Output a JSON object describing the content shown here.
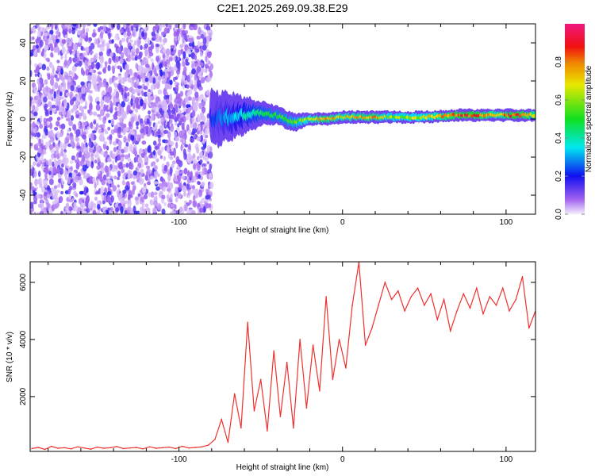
{
  "title": "C2E1.2025.269.09.38.E29",
  "chart_data": [
    {
      "type": "heatmap",
      "xlabel": "Height of straight line (km)",
      "ylabel": "Frequency (Hz)",
      "xlim": [
        -191,
        118
      ],
      "ylim": [
        -50,
        50
      ],
      "xticks": [
        {
          "v": -100,
          "label": "-100"
        },
        {
          "v": 0,
          "label": "0"
        },
        {
          "v": 100,
          "label": "100"
        }
      ],
      "yticks": [
        {
          "v": -40,
          "label": "-40"
        },
        {
          "v": -20,
          "label": "-20"
        },
        {
          "v": 0,
          "label": "0"
        },
        {
          "v": 20,
          "label": "20"
        },
        {
          "v": 40,
          "label": "40"
        }
      ],
      "colorbar": {
        "label": "Normalized spectral amplitude",
        "range": [
          0,
          1
        ],
        "ticks": [
          {
            "v": 0,
            "label": "0.0"
          },
          {
            "v": 0.2,
            "label": "0.2"
          },
          {
            "v": 0.4,
            "label": "0.4"
          },
          {
            "v": 0.6,
            "label": "0.6"
          },
          {
            "v": 0.8,
            "label": "0.8"
          }
        ]
      },
      "noise_region": {
        "x_range": [
          -191,
          -80
        ],
        "amplitude_range": [
          0.02,
          0.18
        ]
      },
      "ridge": [
        {
          "x": -80,
          "freq": 0,
          "spread": 9,
          "amp": 0.22
        },
        {
          "x": -70,
          "freq": 1,
          "spread": 8,
          "amp": 0.3
        },
        {
          "x": -60,
          "freq": 2,
          "spread": 6,
          "amp": 0.38
        },
        {
          "x": -50,
          "freq": 3,
          "spread": 4,
          "amp": 0.45
        },
        {
          "x": -40,
          "freq": 2,
          "spread": 3,
          "amp": 0.5
        },
        {
          "x": -30,
          "freq": -2,
          "spread": 3,
          "amp": 0.55
        },
        {
          "x": -20,
          "freq": 0,
          "spread": 2,
          "amp": 0.65
        },
        {
          "x": -10,
          "freq": 0,
          "spread": 2,
          "amp": 0.8
        },
        {
          "x": 0,
          "freq": 1,
          "spread": 2,
          "amp": 0.7
        },
        {
          "x": 10,
          "freq": 1,
          "spread": 2,
          "amp": 0.75
        },
        {
          "x": 20,
          "freq": 1,
          "spread": 2,
          "amp": 0.8
        },
        {
          "x": 30,
          "freq": 1,
          "spread": 2,
          "amp": 0.6
        },
        {
          "x": 50,
          "freq": 1,
          "spread": 2,
          "amp": 0.65
        },
        {
          "x": 70,
          "freq": 2,
          "spread": 2,
          "amp": 0.85
        },
        {
          "x": 80,
          "freq": 2,
          "spread": 2,
          "amp": 0.9
        },
        {
          "x": 95,
          "freq": 2,
          "spread": 2,
          "amp": 0.7
        },
        {
          "x": 105,
          "freq": 2,
          "spread": 2,
          "amp": 0.9
        },
        {
          "x": 118,
          "freq": 2,
          "spread": 2,
          "amp": 0.75
        }
      ]
    },
    {
      "type": "line",
      "xlabel": "Height of straight line (km)",
      "ylabel": "SNR (10 * v/v)",
      "xlim": [
        -191,
        118
      ],
      "ylim": [
        80,
        6720
      ],
      "xticks": [
        {
          "v": -100,
          "label": "-100"
        },
        {
          "v": 0,
          "label": "0"
        },
        {
          "v": 100,
          "label": "100"
        }
      ],
      "yticks": [
        {
          "v": 2000,
          "label": "2000"
        },
        {
          "v": 4000,
          "label": "4000"
        },
        {
          "v": 6000,
          "label": "6000"
        }
      ],
      "color": "#f03030",
      "x_start": -190,
      "x_step": 4,
      "values": [
        180,
        220,
        150,
        260,
        190,
        210,
        170,
        240,
        200,
        160,
        230,
        190,
        210,
        250,
        180,
        200,
        220,
        170,
        240,
        190,
        210,
        230,
        180,
        260,
        200,
        220,
        240,
        300,
        500,
        1200,
        400,
        2100,
        900,
        4600,
        1500,
        2600,
        800,
        3600,
        1300,
        3200,
        900,
        4000,
        1600,
        3800,
        2200,
        5500,
        2600,
        4000,
        3000,
        5200,
        6700,
        3800,
        4400,
        5200,
        6000,
        5400,
        5700,
        5000,
        5500,
        5800,
        5200,
        5600,
        4700,
        5400,
        4300,
        5000,
        5600,
        5100,
        5800,
        4900,
        5500,
        5200,
        5800,
        5000,
        5400,
        6200,
        4400,
        5000
      ]
    }
  ]
}
